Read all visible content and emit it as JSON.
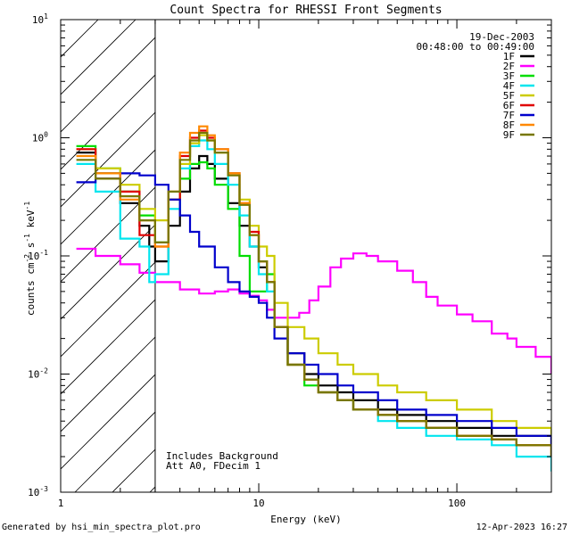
{
  "chart_data": {
    "type": "line",
    "title": "Count Spectra for RHESSI Front Segments",
    "xlabel": "Energy (keV)",
    "ylabel": "counts cm-2 s-1 keV-1",
    "ylabel_parts": {
      "base": "counts cm",
      "exp_cm": "-2",
      "s": " s",
      "exp_s": "-1",
      "kev": " keV",
      "exp_kev": "-1"
    },
    "xscale": "log",
    "yscale": "log",
    "xlim": [
      1,
      300
    ],
    "ylim": [
      0.001,
      10
    ],
    "x_ticks": [
      {
        "value": 1,
        "label": "1"
      },
      {
        "value": 10,
        "label": "10"
      },
      {
        "value": 100,
        "label": "100"
      }
    ],
    "y_ticks": [
      {
        "value": 0.001,
        "base": "10",
        "exp": "-3"
      },
      {
        "value": 0.01,
        "base": "10",
        "exp": "-2"
      },
      {
        "value": 0.1,
        "base": "10",
        "exp": "-1"
      },
      {
        "value": 1,
        "base": "10",
        "exp": "0"
      },
      {
        "value": 10,
        "base": "10",
        "exp": "1"
      }
    ],
    "shaded_region": {
      "x_from": 1,
      "x_to": 3,
      "pattern": "diagonal-hatch"
    },
    "date": "19-Dec-2003",
    "time_range": "00:48:00 to 00:49:00",
    "annotations": [
      "Includes Background",
      "Att A0, FDecim 1"
    ],
    "legend_position": "top-right",
    "series": [
      {
        "name": "1F",
        "color": "#000000",
        "points": [
          [
            1.2,
            0.75
          ],
          [
            1.5,
            0.5
          ],
          [
            2,
            0.28
          ],
          [
            2.5,
            0.18
          ],
          [
            2.8,
            0.12
          ],
          [
            3,
            0.09
          ],
          [
            3.5,
            0.18
          ],
          [
            4,
            0.35
          ],
          [
            4.5,
            0.55
          ],
          [
            5,
            0.7
          ],
          [
            5.5,
            0.6
          ],
          [
            6,
            0.45
          ],
          [
            7,
            0.28
          ],
          [
            8,
            0.18
          ],
          [
            9,
            0.12
          ],
          [
            10,
            0.08
          ],
          [
            11,
            0.06
          ],
          [
            12,
            0.025
          ],
          [
            14,
            0.015
          ],
          [
            17,
            0.01
          ],
          [
            20,
            0.008
          ],
          [
            25,
            0.007
          ],
          [
            30,
            0.006
          ],
          [
            40,
            0.005
          ],
          [
            50,
            0.0045
          ],
          [
            70,
            0.004
          ],
          [
            100,
            0.0035
          ],
          [
            150,
            0.003
          ],
          [
            200,
            0.003
          ],
          [
            300,
            0.0025
          ]
        ]
      },
      {
        "name": "2F",
        "color": "#ff00ff",
        "points": [
          [
            1.2,
            0.115
          ],
          [
            1.5,
            0.1
          ],
          [
            2,
            0.085
          ],
          [
            2.5,
            0.072
          ],
          [
            3,
            0.06
          ],
          [
            4,
            0.052
          ],
          [
            5,
            0.048
          ],
          [
            6,
            0.05
          ],
          [
            7,
            0.052
          ],
          [
            8,
            0.048
          ],
          [
            9,
            0.046
          ],
          [
            10,
            0.042
          ],
          [
            11,
            0.035
          ],
          [
            12,
            0.03
          ],
          [
            14,
            0.03
          ],
          [
            16,
            0.033
          ],
          [
            18,
            0.042
          ],
          [
            20,
            0.055
          ],
          [
            23,
            0.08
          ],
          [
            26,
            0.095
          ],
          [
            30,
            0.105
          ],
          [
            35,
            0.1
          ],
          [
            40,
            0.09
          ],
          [
            50,
            0.075
          ],
          [
            60,
            0.06
          ],
          [
            70,
            0.045
          ],
          [
            80,
            0.038
          ],
          [
            100,
            0.032
          ],
          [
            120,
            0.028
          ],
          [
            150,
            0.022
          ],
          [
            180,
            0.02
          ],
          [
            200,
            0.017
          ],
          [
            250,
            0.014
          ],
          [
            300,
            0.01
          ]
        ]
      },
      {
        "name": "3F",
        "color": "#00dd00",
        "points": [
          [
            1.2,
            0.85
          ],
          [
            1.5,
            0.55
          ],
          [
            2,
            0.35
          ],
          [
            2.5,
            0.22
          ],
          [
            3,
            0.13
          ],
          [
            3.5,
            0.3
          ],
          [
            4,
            0.45
          ],
          [
            4.5,
            0.6
          ],
          [
            5,
            0.62
          ],
          [
            5.5,
            0.55
          ],
          [
            6,
            0.4
          ],
          [
            7,
            0.25
          ],
          [
            8,
            0.1
          ],
          [
            9,
            0.05
          ],
          [
            10,
            0.05
          ],
          [
            11,
            0.07
          ],
          [
            12,
            0.025
          ],
          [
            14,
            0.012
          ],
          [
            17,
            0.008
          ],
          [
            20,
            0.007
          ],
          [
            25,
            0.006
          ],
          [
            30,
            0.005
          ],
          [
            40,
            0.0045
          ],
          [
            50,
            0.004
          ],
          [
            70,
            0.0035
          ],
          [
            100,
            0.003
          ],
          [
            150,
            0.0028
          ],
          [
            200,
            0.0025
          ],
          [
            300,
            0.002
          ]
        ]
      },
      {
        "name": "4F",
        "color": "#00e5ee",
        "points": [
          [
            1.2,
            0.6
          ],
          [
            1.5,
            0.35
          ],
          [
            2,
            0.14
          ],
          [
            2.5,
            0.12
          ],
          [
            2.8,
            0.06
          ],
          [
            3,
            0.07
          ],
          [
            3.5,
            0.25
          ],
          [
            4,
            0.55
          ],
          [
            4.5,
            0.85
          ],
          [
            5,
            0.95
          ],
          [
            5.5,
            0.8
          ],
          [
            6,
            0.6
          ],
          [
            7,
            0.4
          ],
          [
            8,
            0.22
          ],
          [
            9,
            0.12
          ],
          [
            10,
            0.07
          ],
          [
            11,
            0.05
          ],
          [
            12,
            0.025
          ],
          [
            14,
            0.012
          ],
          [
            17,
            0.009
          ],
          [
            20,
            0.007
          ],
          [
            25,
            0.006
          ],
          [
            30,
            0.005
          ],
          [
            40,
            0.004
          ],
          [
            50,
            0.0035
          ],
          [
            70,
            0.003
          ],
          [
            100,
            0.0028
          ],
          [
            150,
            0.0025
          ],
          [
            200,
            0.002
          ],
          [
            300,
            0.0015
          ]
        ]
      },
      {
        "name": "5F",
        "color": "#cccc00",
        "points": [
          [
            1.2,
            0.8
          ],
          [
            1.5,
            0.55
          ],
          [
            2,
            0.4
          ],
          [
            2.5,
            0.25
          ],
          [
            3,
            0.2
          ],
          [
            3.5,
            0.3
          ],
          [
            4,
            0.6
          ],
          [
            4.5,
            0.9
          ],
          [
            5,
            1.05
          ],
          [
            5.5,
            0.95
          ],
          [
            6,
            0.75
          ],
          [
            7,
            0.5
          ],
          [
            8,
            0.3
          ],
          [
            9,
            0.18
          ],
          [
            10,
            0.12
          ],
          [
            11,
            0.1
          ],
          [
            12,
            0.04
          ],
          [
            14,
            0.025
          ],
          [
            17,
            0.02
          ],
          [
            20,
            0.015
          ],
          [
            25,
            0.012
          ],
          [
            30,
            0.01
          ],
          [
            40,
            0.008
          ],
          [
            50,
            0.007
          ],
          [
            70,
            0.006
          ],
          [
            100,
            0.005
          ],
          [
            150,
            0.004
          ],
          [
            200,
            0.0035
          ],
          [
            300,
            0.003
          ]
        ]
      },
      {
        "name": "6F",
        "color": "#e00000",
        "points": [
          [
            1.2,
            0.8
          ],
          [
            1.5,
            0.45
          ],
          [
            2,
            0.35
          ],
          [
            2.5,
            0.15
          ],
          [
            3,
            0.12
          ],
          [
            3.5,
            0.3
          ],
          [
            4,
            0.7
          ],
          [
            4.5,
            1.0
          ],
          [
            5,
            1.15
          ],
          [
            5.5,
            1.0
          ],
          [
            6,
            0.8
          ],
          [
            7,
            0.5
          ],
          [
            8,
            0.28
          ],
          [
            9,
            0.16
          ],
          [
            10,
            0.09
          ],
          [
            11,
            0.06
          ],
          [
            12,
            0.025
          ],
          [
            14,
            0.012
          ],
          [
            17,
            0.009
          ],
          [
            20,
            0.007
          ],
          [
            25,
            0.006
          ],
          [
            30,
            0.005
          ],
          [
            40,
            0.0045
          ],
          [
            50,
            0.004
          ],
          [
            70,
            0.0035
          ],
          [
            100,
            0.003
          ],
          [
            150,
            0.0028
          ],
          [
            200,
            0.0025
          ],
          [
            300,
            0.002
          ]
        ]
      },
      {
        "name": "7F",
        "color": "#0000cc",
        "points": [
          [
            1.2,
            0.42
          ],
          [
            1.5,
            0.45
          ],
          [
            2,
            0.5
          ],
          [
            2.5,
            0.48
          ],
          [
            3,
            0.4
          ],
          [
            3.5,
            0.3
          ],
          [
            4,
            0.22
          ],
          [
            4.5,
            0.16
          ],
          [
            5,
            0.12
          ],
          [
            6,
            0.08
          ],
          [
            7,
            0.06
          ],
          [
            8,
            0.05
          ],
          [
            9,
            0.045
          ],
          [
            10,
            0.04
          ],
          [
            11,
            0.03
          ],
          [
            12,
            0.02
          ],
          [
            14,
            0.015
          ],
          [
            17,
            0.012
          ],
          [
            20,
            0.01
          ],
          [
            25,
            0.008
          ],
          [
            30,
            0.007
          ],
          [
            40,
            0.006
          ],
          [
            50,
            0.005
          ],
          [
            70,
            0.0045
          ],
          [
            100,
            0.004
          ],
          [
            150,
            0.0035
          ],
          [
            200,
            0.003
          ],
          [
            300,
            0.0025
          ]
        ]
      },
      {
        "name": "8F",
        "color": "#ff8800",
        "points": [
          [
            1.2,
            0.7
          ],
          [
            1.5,
            0.5
          ],
          [
            2,
            0.3
          ],
          [
            2.5,
            0.2
          ],
          [
            3,
            0.12
          ],
          [
            3.5,
            0.35
          ],
          [
            4,
            0.75
          ],
          [
            4.5,
            1.1
          ],
          [
            5,
            1.25
          ],
          [
            5.5,
            1.05
          ],
          [
            6,
            0.8
          ],
          [
            7,
            0.5
          ],
          [
            8,
            0.28
          ],
          [
            9,
            0.15
          ],
          [
            10,
            0.09
          ],
          [
            11,
            0.06
          ],
          [
            12,
            0.025
          ],
          [
            14,
            0.012
          ],
          [
            17,
            0.009
          ],
          [
            20,
            0.007
          ],
          [
            25,
            0.006
          ],
          [
            30,
            0.005
          ],
          [
            40,
            0.0045
          ],
          [
            50,
            0.004
          ],
          [
            70,
            0.0035
          ],
          [
            100,
            0.003
          ],
          [
            150,
            0.0028
          ],
          [
            200,
            0.0025
          ],
          [
            300,
            0.002
          ]
        ]
      },
      {
        "name": "9F",
        "color": "#777700",
        "points": [
          [
            1.2,
            0.65
          ],
          [
            1.5,
            0.45
          ],
          [
            2,
            0.32
          ],
          [
            2.5,
            0.2
          ],
          [
            3,
            0.13
          ],
          [
            3.5,
            0.35
          ],
          [
            4,
            0.65
          ],
          [
            4.5,
            0.95
          ],
          [
            5,
            1.1
          ],
          [
            5.5,
            0.95
          ],
          [
            6,
            0.75
          ],
          [
            7,
            0.48
          ],
          [
            8,
            0.27
          ],
          [
            9,
            0.15
          ],
          [
            10,
            0.09
          ],
          [
            11,
            0.06
          ],
          [
            12,
            0.025
          ],
          [
            14,
            0.012
          ],
          [
            17,
            0.009
          ],
          [
            20,
            0.007
          ],
          [
            25,
            0.006
          ],
          [
            30,
            0.005
          ],
          [
            40,
            0.0045
          ],
          [
            50,
            0.004
          ],
          [
            70,
            0.0035
          ],
          [
            100,
            0.003
          ],
          [
            150,
            0.0028
          ],
          [
            200,
            0.0025
          ],
          [
            300,
            0.002
          ]
        ]
      }
    ]
  },
  "footer": {
    "generated_by": "Generated by hsi_min_spectra_plot.pro",
    "timestamp": "12-Apr-2023 16:27"
  }
}
